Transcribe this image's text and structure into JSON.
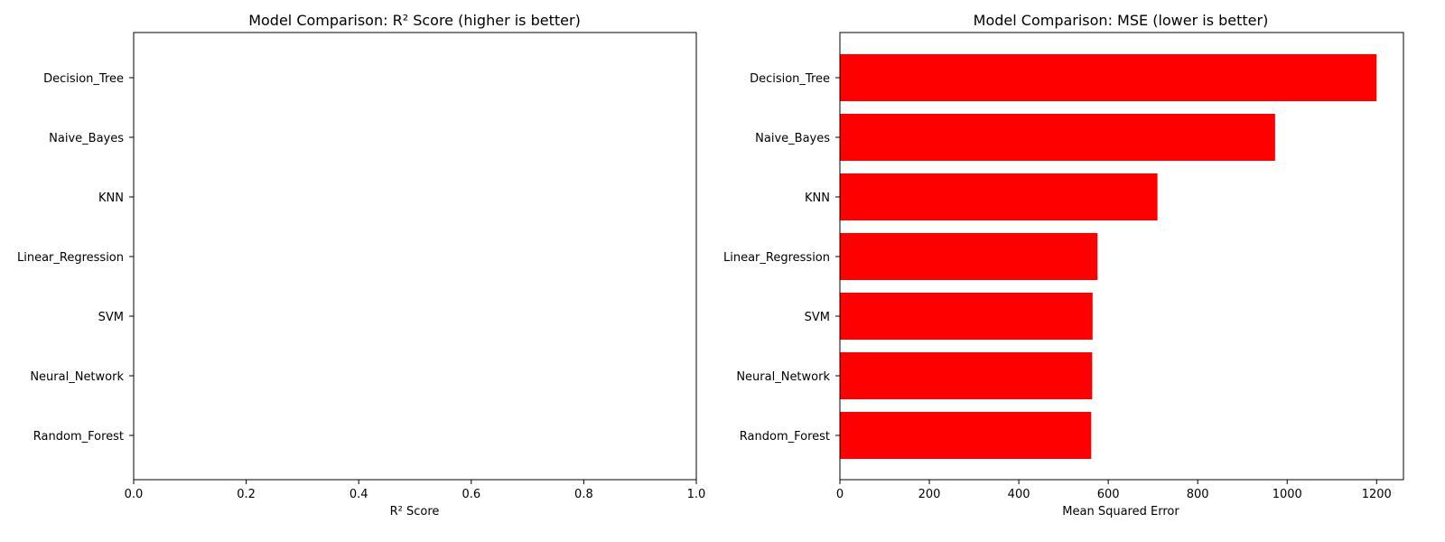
{
  "chart_data": [
    {
      "type": "bar",
      "orientation": "horizontal",
      "title": "Model Comparison: R² Score (higher is better)",
      "xlabel": "R² Score",
      "ylabel": "",
      "categories": [
        "Random_Forest",
        "Neural_Network",
        "SVM",
        "Linear_Regression",
        "KNN",
        "Naive_Bayes",
        "Decision_Tree"
      ],
      "values": [
        null,
        null,
        null,
        null,
        null,
        null,
        null
      ],
      "xlim": [
        0,
        1
      ],
      "xticks": [
        "0.0",
        "0.2",
        "0.4",
        "0.6",
        "0.8",
        "1.0"
      ],
      "grid": false,
      "bar_color": "#ff0000"
    },
    {
      "type": "bar",
      "orientation": "horizontal",
      "title": "Model Comparison: MSE (lower is better)",
      "xlabel": "Mean Squared Error",
      "ylabel": "",
      "categories": [
        "Random_Forest",
        "Neural_Network",
        "SVM",
        "Linear_Regression",
        "KNN",
        "Naive_Bayes",
        "Decision_Tree"
      ],
      "values": [
        562,
        564,
        565,
        576,
        710,
        973,
        1200
      ],
      "xlim": [
        0,
        1260
      ],
      "xticks": [
        "0",
        "200",
        "400",
        "600",
        "800",
        "1000",
        "1200"
      ],
      "grid": false,
      "bar_color": "#ff0000"
    }
  ]
}
